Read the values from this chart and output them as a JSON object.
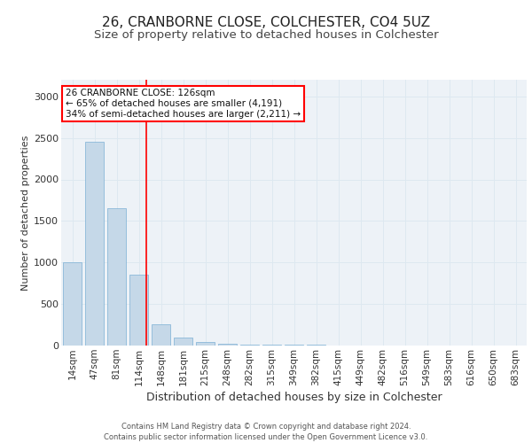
{
  "title1": "26, CRANBORNE CLOSE, COLCHESTER, CO4 5UZ",
  "title2": "Size of property relative to detached houses in Colchester",
  "xlabel": "Distribution of detached houses by size in Colchester",
  "ylabel": "Number of detached properties",
  "categories": [
    "14sqm",
    "47sqm",
    "81sqm",
    "114sqm",
    "148sqm",
    "181sqm",
    "215sqm",
    "248sqm",
    "282sqm",
    "315sqm",
    "349sqm",
    "382sqm",
    "415sqm",
    "449sqm",
    "482sqm",
    "516sqm",
    "549sqm",
    "583sqm",
    "616sqm",
    "650sqm",
    "683sqm"
  ],
  "values": [
    1000,
    2450,
    1650,
    850,
    255,
    100,
    45,
    20,
    15,
    10,
    8,
    6,
    5,
    4,
    3,
    3,
    2,
    2,
    1,
    1,
    1
  ],
  "bar_color": "#c5d8e8",
  "bar_edge_color": "#7bafd4",
  "grid_color": "#dde8f0",
  "background_color": "#edf2f7",
  "annotation_text": "26 CRANBORNE CLOSE: 126sqm\n← 65% of detached houses are smaller (4,191)\n34% of semi-detached houses are larger (2,211) →",
  "vline_x": 3.35,
  "ylim": [
    0,
    3200
  ],
  "yticks": [
    0,
    500,
    1000,
    1500,
    2000,
    2500,
    3000
  ],
  "footer": "Contains HM Land Registry data © Crown copyright and database right 2024.\nContains public sector information licensed under the Open Government Licence v3.0.",
  "title1_fontsize": 11,
  "title2_fontsize": 9.5,
  "xlabel_fontsize": 9,
  "ylabel_fontsize": 8,
  "tick_fontsize": 7.5,
  "footer_fontsize": 6
}
